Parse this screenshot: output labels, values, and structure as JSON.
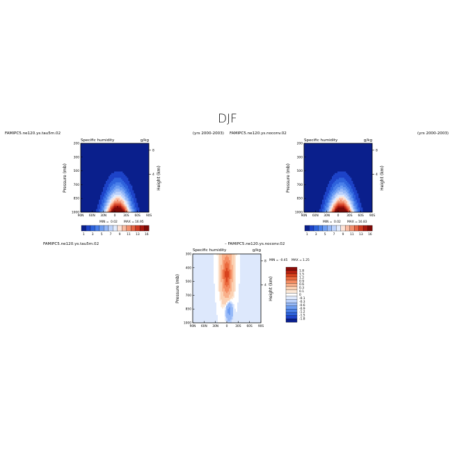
{
  "figure": {
    "title": "DJF"
  },
  "colors": {
    "humidity_scale": [
      "#0a1f8c",
      "#1d43c8",
      "#2e63dc",
      "#4a80ea",
      "#6d9df2",
      "#95b8f7",
      "#bcd2fb",
      "#e1ebfd",
      "#fde3d7",
      "#f9bca3",
      "#f3916f",
      "#e56645",
      "#cf3b22",
      "#a81a10",
      "#7d0a07"
    ],
    "diff_scale": [
      "#0a1f8c",
      "#1d43c8",
      "#2e63dc",
      "#4a80ea",
      "#6d9df2",
      "#95b8f7",
      "#bcd2fb",
      "#dde8fc",
      "#ffffff",
      "#fde8d6",
      "#fbd1b3",
      "#f9b08a",
      "#f48c62",
      "#ea6a3e",
      "#d8431d",
      "#b52010",
      "#8a0c08"
    ]
  },
  "chart_data": [
    {
      "type": "heatmap",
      "case": "FAMIPC5.ne120.ys.tau5m.02",
      "years": "(yrs 2000-2003)",
      "title": "Specific humidity",
      "units": "g/kg",
      "ylabel": "Pressure (mb)",
      "right_label": "Height (km)",
      "x_ticks": [
        "90N",
        "60N",
        "30N",
        "0",
        "30S",
        "60S",
        "90S"
      ],
      "y_ticks": [
        "200",
        "300",
        "500",
        "700",
        "850",
        "1000"
      ],
      "right_ticks": [
        "8",
        "4"
      ],
      "colorbar_labels": [
        "1",
        "3",
        "5",
        "7",
        "9",
        "11",
        "13",
        "16"
      ],
      "min_label": "MIN =",
      "min": "0.02",
      "max_label": "MAX =",
      "max": "16.95",
      "field": {
        "peak": 16.95,
        "peak_lat": -8,
        "floor": 0.02
      }
    },
    {
      "type": "heatmap",
      "case": "FAMIPC5.ne120.ys.noconv.02",
      "years": "(yrs 2000-2003)",
      "title": "Specific humidity",
      "units": "g/kg",
      "ylabel": "Pressure (mb)",
      "right_label": "Height (km)",
      "x_ticks": [
        "90N",
        "60N",
        "30N",
        "0",
        "30S",
        "60S",
        "90S"
      ],
      "y_ticks": [
        "200",
        "300",
        "500",
        "700",
        "850",
        "1000"
      ],
      "right_ticks": [
        "8",
        "4"
      ],
      "colorbar_labels": [
        "1",
        "3",
        "5",
        "7",
        "9",
        "11",
        "13",
        "16"
      ],
      "min_label": "MIN =",
      "min": "0.02",
      "max_label": "MAX =",
      "max": "16.83",
      "field": {
        "peak": 16.83,
        "peak_lat": -8,
        "floor": 0.02
      }
    },
    {
      "type": "heatmap",
      "case_left": "FAMIPC5.ne120.ys.tau5m.02",
      "case_right": "–  FAMIPC5.ne120.ys.noconv.02",
      "title": "Specific humidity",
      "units": "g/kg",
      "ylabel": "Pressure (mb)",
      "right_label": "Height (km)",
      "x_ticks": [
        "90N",
        "60N",
        "30N",
        "0",
        "30S",
        "60S",
        "90S"
      ],
      "y_ticks": [
        "300",
        "400",
        "500",
        "700",
        "850",
        "1000"
      ],
      "right_ticks": [
        "8",
        "4"
      ],
      "colorbar_labels": [
        "1.8",
        "1.5",
        "1.2",
        "0.9",
        "0.6",
        "0.3",
        "0.1",
        "0",
        "-0.1",
        "-0.3",
        "-0.6",
        "-0.9",
        "-1.2",
        "-1.5",
        "-1.8"
      ],
      "min_label": "MIN =",
      "min": "-0.45",
      "max_label": "MAX =",
      "max": "1.25",
      "field": {
        "max": 1.25,
        "min": -0.45
      }
    }
  ]
}
